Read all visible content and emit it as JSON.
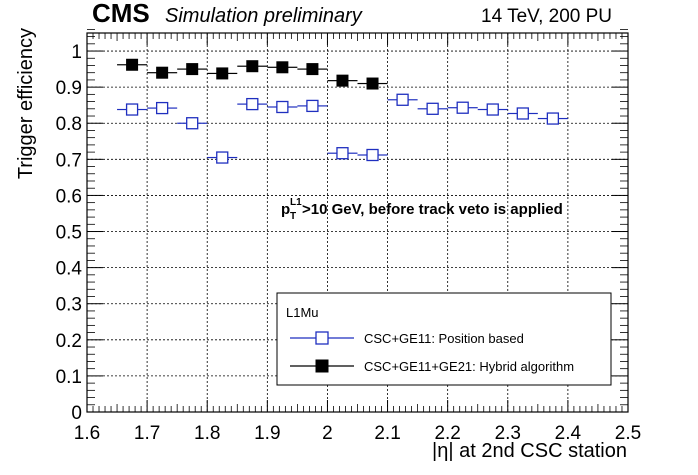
{
  "header": {
    "experiment": "CMS",
    "status": "Simulation preliminary",
    "conditions": "14 TeV, 200 PU"
  },
  "chart_data": {
    "type": "scatter",
    "xlabel": "|η| at 2nd CSC station",
    "ylabel": "Trigger efficiency",
    "xlim": [
      1.6,
      2.5
    ],
    "ylim": [
      0,
      1.05
    ],
    "x_ticks": [
      "1.6",
      "1.7",
      "1.8",
      "1.9",
      "2",
      "2.1",
      "2.2",
      "2.3",
      "2.4",
      "2.5"
    ],
    "y_ticks": [
      "0",
      "0.1",
      "0.2",
      "0.3",
      "0.4",
      "0.5",
      "0.6",
      "0.7",
      "0.8",
      "0.9",
      "1"
    ],
    "grid": true,
    "legend": {
      "placement": "bottom-right",
      "header": "L1Mu"
    },
    "annotation": {
      "p": "p",
      "sub": "T",
      "sup": "L1",
      "rest": ">10 GeV, before track veto is applied"
    },
    "series": [
      {
        "name": "CSC+GE11: Position based",
        "color": "#1f2fbf",
        "marker": "open-square",
        "x": [
          1.675,
          1.725,
          1.775,
          1.825,
          1.875,
          1.925,
          1.975,
          2.025,
          2.075,
          2.125,
          2.175,
          2.225,
          2.275,
          2.325,
          2.375
        ],
        "y": [
          0.838,
          0.842,
          0.8,
          0.705,
          0.853,
          0.845,
          0.848,
          0.717,
          0.712,
          0.865,
          0.84,
          0.843,
          0.838,
          0.827,
          0.813
        ],
        "xerr": 0.025,
        "yerr": [
          0.005,
          0.012,
          0.005,
          0.007,
          0.005,
          0.005,
          0.005,
          0.008,
          0.005,
          0.005,
          0.004,
          0.004,
          0.004,
          0.004,
          0.004
        ]
      },
      {
        "name": "CSC+GE11+GE21: Hybrid algorithm",
        "color": "#000000",
        "marker": "filled-square",
        "x": [
          1.675,
          1.725,
          1.775,
          1.825,
          1.875,
          1.925,
          1.975,
          2.025,
          2.075
        ],
        "y": [
          0.962,
          0.94,
          0.95,
          0.938,
          0.958,
          0.955,
          0.95,
          0.918,
          0.91
        ],
        "xerr": 0.025,
        "yerr": [
          0.004,
          0.004,
          0.004,
          0.004,
          0.004,
          0.004,
          0.004,
          0.004,
          0.004
        ]
      }
    ]
  }
}
